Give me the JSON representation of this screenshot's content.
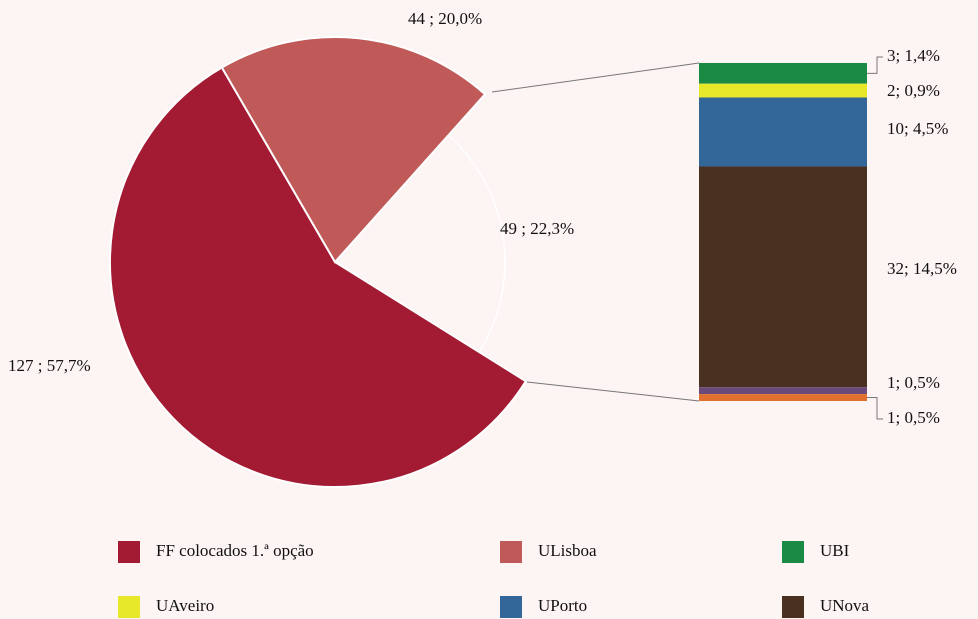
{
  "chart_data": {
    "type": "pie",
    "categories": [
      "FF colocados 1.ª opção",
      "ULisboa",
      null
    ],
    "values": [
      127,
      44,
      49
    ],
    "value_labels": [
      "127 ;  57,7%",
      "44 ;  20,0%",
      "49 ;  22,3%"
    ],
    "colors": [
      "#a31a33",
      "#c05a58",
      null
    ],
    "bar": {
      "categories": [
        "UBI",
        "UAveiro",
        "UPorto",
        "UNova",
        null,
        null
      ],
      "values": [
        3,
        2,
        10,
        32,
        1,
        1
      ],
      "value_labels": [
        "3; 1,4%",
        "2; 0,9%",
        "10; 4,5%",
        "32; 14,5%",
        "1; 0,5%",
        "1; 0,5%"
      ],
      "colors": [
        "#1a8a45",
        "#e8e82a",
        "#336699",
        "#4a3020",
        "#6a4a78",
        "#e07030"
      ]
    }
  }
}
